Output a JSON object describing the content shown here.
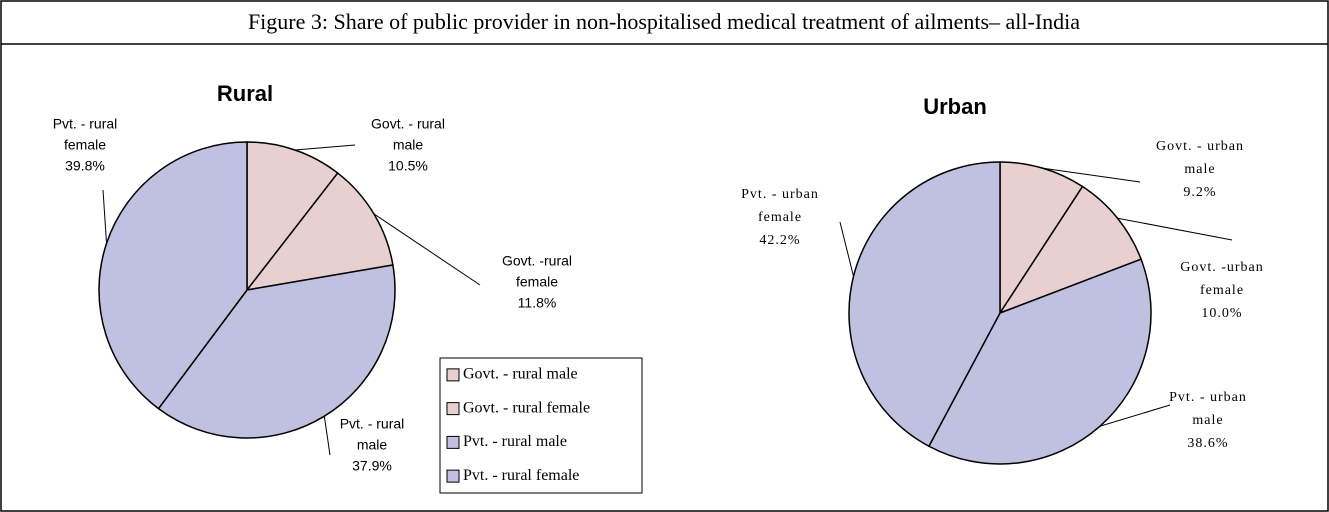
{
  "title": "Figure 3: Share of public provider in non-hospitalised medical treatment of ailments– all-India",
  "chart_data": [
    {
      "type": "pie",
      "title": "Rural",
      "categories": [
        "Govt. - rural male",
        "Govt. - rural female",
        "Pvt. - rural male",
        "Pvt. - rural female"
      ],
      "slice_labels": [
        [
          "Govt. - rural",
          "male"
        ],
        [
          "Govt. -rural",
          "female"
        ],
        [
          "Pvt. - rural",
          "male"
        ],
        [
          "Pvt. - rural",
          "female"
        ]
      ],
      "values": [
        10.5,
        11.8,
        37.9,
        39.8
      ],
      "value_labels": [
        "10.5%",
        "11.8%",
        "37.9%",
        "39.8%"
      ],
      "colors": [
        "#e8d0d0",
        "#e8d0d0",
        "#c0c0e0",
        "#c0c0e0"
      ],
      "legend": true
    },
    {
      "type": "pie",
      "title": "Urban",
      "slice_labels": [
        [
          "Govt. - urban",
          "male"
        ],
        [
          "Govt. -urban",
          "female"
        ],
        [
          "Pvt. - urban",
          "male"
        ],
        [
          "Pvt. - urban",
          "female"
        ]
      ],
      "values": [
        9.2,
        10.0,
        38.6,
        42.2
      ],
      "value_labels": [
        "9.2%",
        "10.0%",
        "38.6%",
        "42.2%"
      ],
      "colors": [
        "#e8d0d0",
        "#e8d0d0",
        "#c0c0e0",
        "#c0c0e0"
      ],
      "legend": false
    }
  ]
}
